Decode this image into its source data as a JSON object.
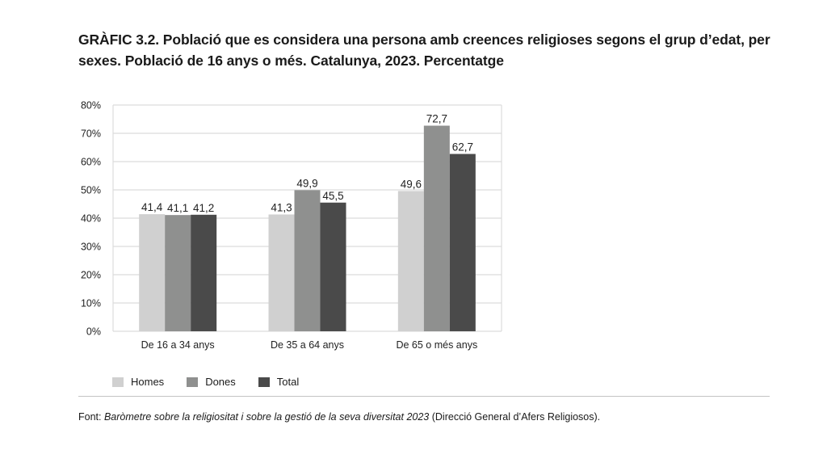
{
  "title": "GRÀFIC 3.2. Població que es considera una persona amb creences religioses segons el grup d’edat, per sexes. Població de 16 anys o més. Catalunya, 2023. Percentatge",
  "chart_data": {
    "type": "bar",
    "title": "GRÀFIC 3.2. Població que es considera una persona amb creences religioses segons el grup d’edat, per sexes. Població de 16 anys o més. Catalunya, 2023. Percentatge",
    "xlabel": "",
    "ylabel": "",
    "ylim": [
      0,
      80
    ],
    "yticks": [
      0,
      10,
      20,
      30,
      40,
      50,
      60,
      70,
      80
    ],
    "ytick_labels": [
      "0%",
      "10%",
      "20%",
      "30%",
      "40%",
      "50%",
      "60%",
      "70%",
      "80%"
    ],
    "grid": true,
    "legend_position": "bottom-left",
    "categories": [
      "De 16 a 34 anys",
      "De 35 a 64 anys",
      "De 65 o més anys"
    ],
    "series": [
      {
        "name": "Homes",
        "color": "#d0d0d0",
        "values": [
          41.4,
          41.3,
          49.6
        ],
        "labels": [
          "41,4",
          "41,3",
          "49,6"
        ]
      },
      {
        "name": "Dones",
        "color": "#8f908f",
        "values": [
          41.1,
          49.9,
          72.7
        ],
        "labels": [
          "41,1",
          "49,9",
          "72,7"
        ]
      },
      {
        "name": "Total",
        "color": "#4a4a4a",
        "values": [
          41.2,
          45.5,
          62.7
        ],
        "labels": [
          "41,2",
          "45,5",
          "62,7"
        ]
      }
    ]
  },
  "source": {
    "prefix": "Font: ",
    "italic": "Baròmetre sobre la religiositat i sobre la gestió de la seva diversitat 2023",
    "suffix": " (Direcció General d’Afers Religiosos)."
  }
}
